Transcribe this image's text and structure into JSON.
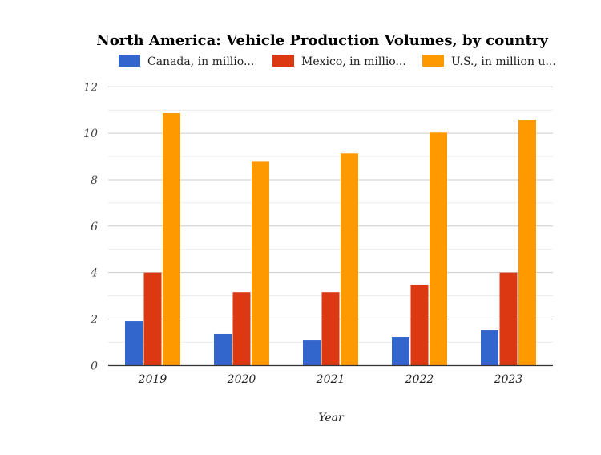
{
  "chart_data": {
    "type": "bar",
    "title": "North America: Vehicle Production Volumes, by country",
    "xlabel": "Year",
    "ylabel": "",
    "categories": [
      "2019",
      "2020",
      "2021",
      "2022",
      "2023"
    ],
    "series": [
      {
        "name": "Canada, in millio...",
        "color": "#3366cc",
        "values": [
          1.91,
          1.36,
          1.08,
          1.22,
          1.53
        ]
      },
      {
        "name": "Mexico, in millio...",
        "color": "#dc3912",
        "values": [
          4.0,
          3.15,
          3.15,
          3.47,
          4.0
        ]
      },
      {
        "name": "U.S., in million u...",
        "color": "#ff9900",
        "values": [
          10.87,
          8.78,
          9.13,
          10.03,
          10.59
        ]
      }
    ],
    "ylim": [
      0,
      12
    ],
    "yticks": [
      "0",
      "2",
      "4",
      "6",
      "8",
      "10",
      "12"
    ],
    "grid": true,
    "legend": "top"
  }
}
